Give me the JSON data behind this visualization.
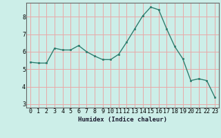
{
  "x": [
    0,
    1,
    2,
    3,
    4,
    5,
    6,
    7,
    8,
    9,
    10,
    11,
    12,
    13,
    14,
    15,
    16,
    17,
    18,
    19,
    20,
    21,
    22,
    23
  ],
  "y": [
    5.4,
    5.35,
    5.35,
    6.2,
    6.1,
    6.1,
    6.35,
    6.0,
    5.75,
    5.55,
    5.55,
    5.85,
    6.55,
    7.3,
    8.05,
    8.55,
    8.4,
    7.3,
    6.3,
    5.6,
    4.35,
    4.45,
    4.35,
    3.4
  ],
  "line_color": "#2e7d6e",
  "marker_color": "#2e7d6e",
  "bg_color": "#cceee8",
  "grid_color": "#e8a8a8",
  "xlabel": "Humidex (Indice chaleur)",
  "xlim": [
    -0.5,
    23.5
  ],
  "ylim": [
    2.8,
    8.8
  ],
  "yticks": [
    3,
    4,
    5,
    6,
    7,
    8
  ],
  "xticks": [
    0,
    1,
    2,
    3,
    4,
    5,
    6,
    7,
    8,
    9,
    10,
    11,
    12,
    13,
    14,
    15,
    16,
    17,
    18,
    19,
    20,
    21,
    22,
    23
  ],
  "xlabel_fontsize": 6.5,
  "tick_fontsize": 6,
  "marker_size": 2.0,
  "line_width": 1.0
}
